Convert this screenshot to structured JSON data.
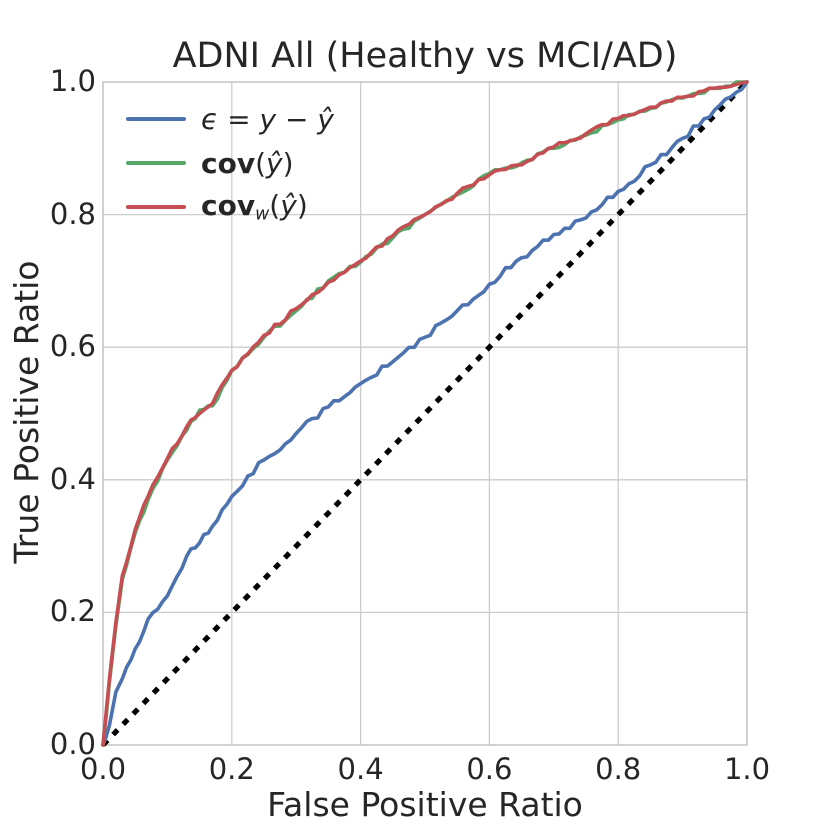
{
  "figure": {
    "background_color": "#ffffff",
    "text_color": "#262626",
    "grid_color": "#cccccc",
    "border_color": "#c4c4c4"
  },
  "chart_data": {
    "type": "line",
    "title": "ADNI All (Healthy vs MCI/AD)",
    "xlabel": "False Positive Ratio",
    "ylabel": "True Positive Ratio",
    "xlim": [
      0.0,
      1.0
    ],
    "ylim": [
      0.0,
      1.0
    ],
    "xtick_labels": [
      "0.0",
      "0.2",
      "0.4",
      "0.6",
      "0.8",
      "1.0"
    ],
    "ytick_labels": [
      "0.0",
      "0.2",
      "0.4",
      "0.6",
      "0.8",
      "1.0"
    ],
    "grid": true,
    "legend_position": "upper left",
    "x": [
      0,
      0.004,
      0.01,
      0.02,
      0.03,
      0.05,
      0.07,
      0.1,
      0.13,
      0.15,
      0.17,
      0.2,
      0.25,
      0.3,
      0.35,
      0.4,
      0.45,
      0.5,
      0.55,
      0.6,
      0.65,
      0.7,
      0.75,
      0.8,
      0.85,
      0.9,
      0.95,
      1.0
    ],
    "series": [
      {
        "id": "epsilon-residual",
        "name": "epsilon = y - y_hat",
        "color": "#4C72B0",
        "label_parts": [
          {
            "t": "ϵ",
            "s": "i"
          },
          {
            "t": " = ",
            "s": ""
          },
          {
            "t": "y",
            "s": "i"
          },
          {
            "t": " − ",
            "s": ""
          },
          {
            "t": "ŷ",
            "s": "i"
          }
        ],
        "values": [
          0,
          0.01,
          0.03,
          0.08,
          0.1,
          0.145,
          0.19,
          0.225,
          0.285,
          0.305,
          0.33,
          0.375,
          0.43,
          0.47,
          0.51,
          0.545,
          0.578,
          0.615,
          0.655,
          0.695,
          0.735,
          0.77,
          0.795,
          0.835,
          0.875,
          0.915,
          0.958,
          1.0
        ]
      },
      {
        "id": "cov",
        "name": "cov(y_hat)",
        "color": "#55A868",
        "label_parts": [
          {
            "t": "cov",
            "s": "b"
          },
          {
            "t": "(",
            "s": ""
          },
          {
            "t": "ŷ",
            "s": "i"
          },
          {
            "t": ")",
            "s": ""
          }
        ],
        "values": [
          0,
          0.035,
          0.095,
          0.18,
          0.25,
          0.32,
          0.37,
          0.43,
          0.475,
          0.505,
          0.51,
          0.565,
          0.615,
          0.655,
          0.7,
          0.728,
          0.765,
          0.8,
          0.83,
          0.862,
          0.878,
          0.9,
          0.92,
          0.943,
          0.96,
          0.975,
          0.99,
          1.0
        ]
      },
      {
        "id": "cov-weighted",
        "name": "cov_w(y_hat)",
        "color": "#C44E52",
        "label_parts": [
          {
            "t": "cov",
            "s": "b"
          },
          {
            "t": "w",
            "s": "sub"
          },
          {
            "t": "(",
            "s": ""
          },
          {
            "t": "ŷ",
            "s": "i"
          },
          {
            "t": ")",
            "s": ""
          }
        ],
        "values": [
          0,
          0.04,
          0.1,
          0.185,
          0.255,
          0.325,
          0.375,
          0.432,
          0.48,
          0.5,
          0.515,
          0.565,
          0.618,
          0.658,
          0.698,
          0.73,
          0.768,
          0.8,
          0.832,
          0.86,
          0.875,
          0.902,
          0.922,
          0.945,
          0.962,
          0.977,
          0.99,
          1.0
        ]
      }
    ],
    "reference_line": {
      "id": "chance-diagonal",
      "style": "dashed",
      "color": "#000000",
      "x": [
        0,
        1
      ],
      "y": [
        0,
        1
      ]
    }
  }
}
